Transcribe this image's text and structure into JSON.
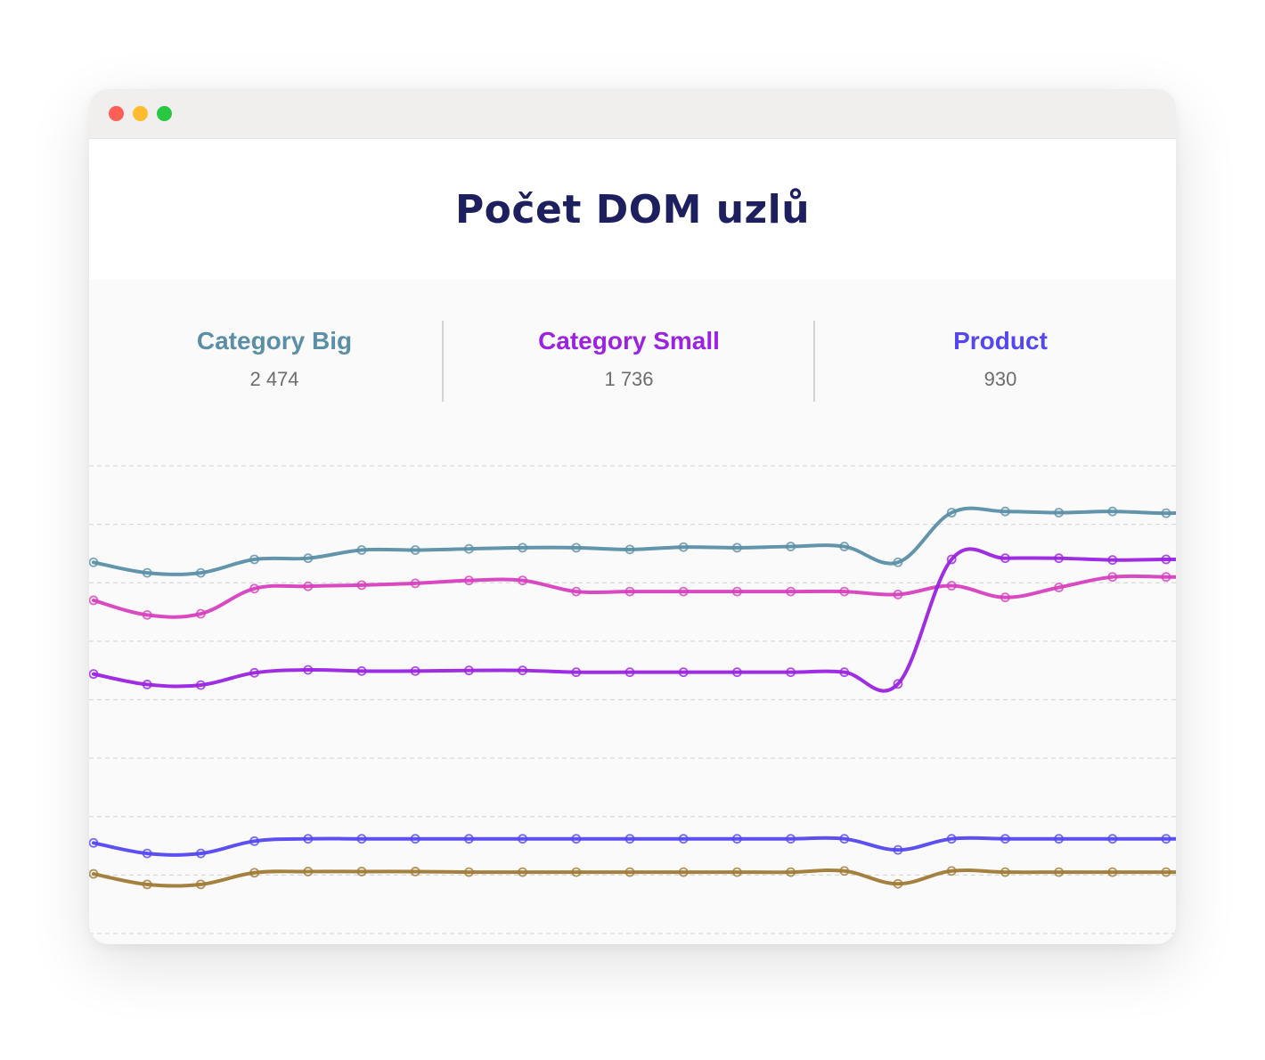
{
  "window": {
    "title": "Počet DOM uzlů"
  },
  "stats": [
    {
      "name": "Category Big",
      "value": "2 474",
      "color": "#5a8fa6"
    },
    {
      "name": "Category Small",
      "value": "1 736",
      "color": "#9a22e0"
    },
    {
      "name": "Product",
      "value": "930",
      "color": "#5447f2"
    }
  ],
  "chart_data": {
    "type": "line",
    "title": "Počet DOM uzlů",
    "xlabel": "",
    "ylabel": "",
    "x": [
      1,
      2,
      3,
      4,
      5,
      6,
      7,
      8,
      9,
      10,
      11,
      12,
      13,
      14,
      15,
      16,
      17,
      18,
      19,
      20,
      21,
      22
    ],
    "ylim": [
      0,
      8
    ],
    "grid": true,
    "series": [
      {
        "name": "Category Big",
        "color": "#5a8fa6",
        "values": [
          6.35,
          6.17,
          6.17,
          6.4,
          6.42,
          6.56,
          6.56,
          6.58,
          6.6,
          6.6,
          6.57,
          6.61,
          6.6,
          6.62,
          6.62,
          6.35,
          7.2,
          7.22,
          7.2,
          7.22,
          7.19,
          7.22
        ]
      },
      {
        "color": "#d63fbf",
        "values": [
          5.7,
          5.45,
          5.47,
          5.9,
          5.94,
          5.96,
          5.99,
          6.04,
          6.04,
          5.85,
          5.85,
          5.85,
          5.85,
          5.85,
          5.85,
          5.8,
          5.95,
          5.75,
          5.92,
          6.1,
          6.1,
          6.09
        ]
      },
      {
        "name": "Category Small",
        "color": "#9a22e0",
        "values": [
          4.44,
          4.26,
          4.25,
          4.46,
          4.51,
          4.49,
          4.49,
          4.5,
          4.5,
          4.47,
          4.47,
          4.47,
          4.47,
          4.47,
          4.47,
          4.27,
          6.4,
          6.42,
          6.42,
          6.39,
          6.4,
          6.4
        ]
      },
      {
        "name": "Product",
        "color": "#5447f2",
        "values": [
          1.55,
          1.37,
          1.37,
          1.58,
          1.62,
          1.62,
          1.62,
          1.62,
          1.62,
          1.62,
          1.62,
          1.62,
          1.62,
          1.62,
          1.62,
          1.43,
          1.62,
          1.62,
          1.62,
          1.62,
          1.62,
          1.62
        ]
      },
      {
        "color": "#a07a35",
        "values": [
          1.02,
          0.84,
          0.84,
          1.04,
          1.06,
          1.06,
          1.06,
          1.05,
          1.05,
          1.05,
          1.05,
          1.05,
          1.05,
          1.05,
          1.07,
          0.85,
          1.07,
          1.05,
          1.05,
          1.05,
          1.05,
          1.05
        ]
      }
    ]
  }
}
